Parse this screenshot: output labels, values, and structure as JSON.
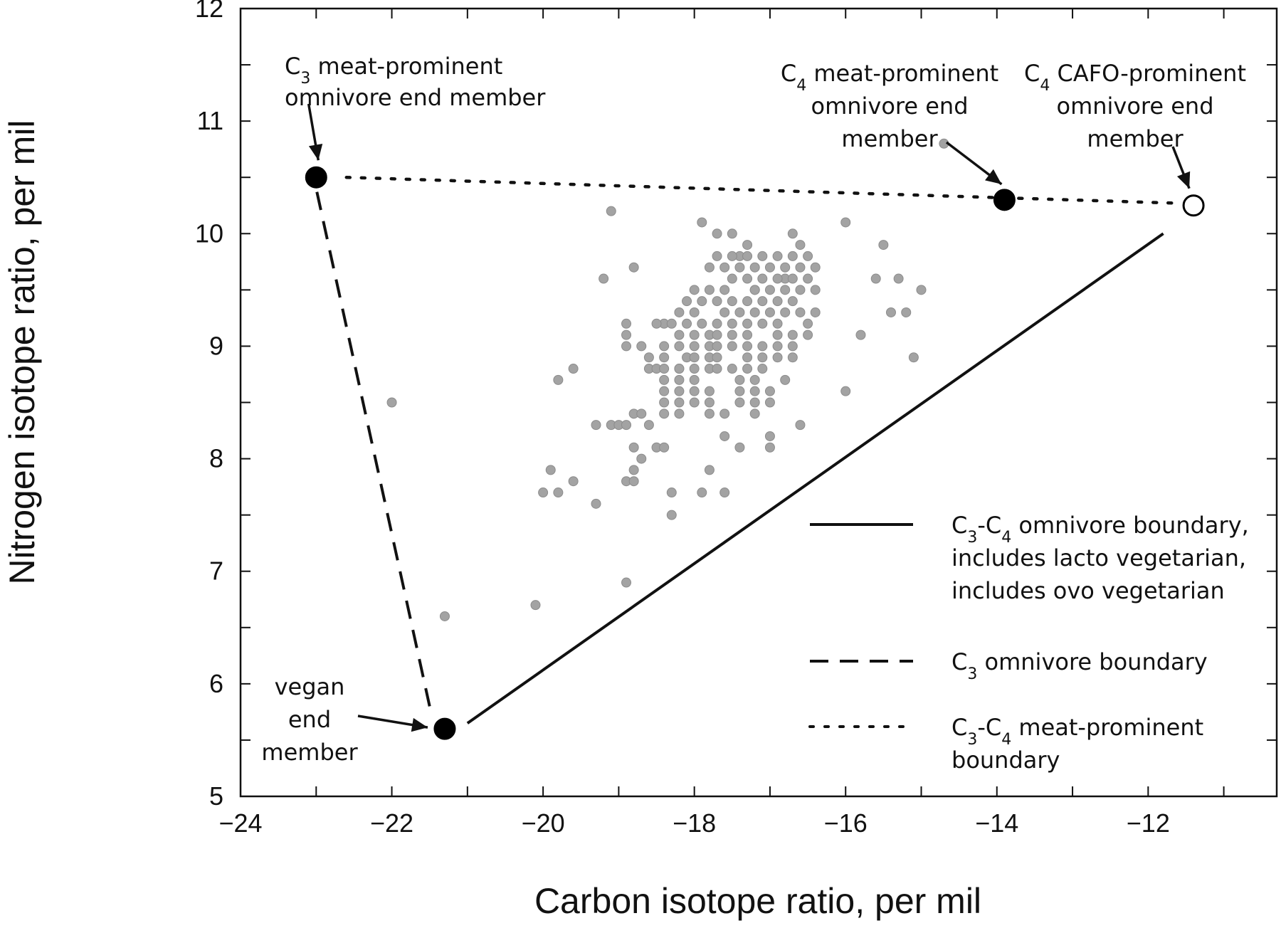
{
  "chart_data": {
    "type": "scatter",
    "xlabel": "Carbon isotope ratio, per mil",
    "ylabel": "Nitrogen isotope ratio, per mil",
    "xlim": [
      -24.0,
      -10.3
    ],
    "ylim": [
      5,
      12
    ],
    "x_ticks": [
      -24,
      -22,
      -20,
      -18,
      -16,
      -14,
      -12
    ],
    "y_ticks": [
      5,
      6,
      7,
      8,
      9,
      10,
      11,
      12
    ],
    "grid": false,
    "legend_position": "bottom-right",
    "legend": [
      {
        "style": "solid",
        "lines": [
          "C3-C4 omnivore boundary,",
          "includes lacto vegetarian,",
          "includes ovo vegetarian"
        ]
      },
      {
        "style": "dashed",
        "lines": [
          "C3 omnivore boundary"
        ]
      },
      {
        "style": "dotted",
        "lines": [
          "C3-C4 meat-prominent",
          "boundary"
        ]
      }
    ],
    "end_members": [
      {
        "x": -23.0,
        "y": 10.5,
        "fill": "black",
        "label": [
          "C3 meat-prominent",
          "omnivore end member"
        ]
      },
      {
        "x": -13.9,
        "y": 10.3,
        "fill": "black",
        "label": [
          "C4 meat-prominent",
          "omnivore end",
          "member"
        ]
      },
      {
        "x": -11.4,
        "y": 10.25,
        "fill": "white",
        "label": [
          "C4 CAFO-prominent",
          "omnivore end",
          "member"
        ]
      },
      {
        "x": -21.3,
        "y": 5.6,
        "fill": "black",
        "label": [
          "vegan",
          "end",
          "member"
        ]
      }
    ],
    "boundaries": [
      {
        "style": "dashed",
        "from": [
          -21.5,
          5.8
        ],
        "to": [
          -23.0,
          10.4
        ]
      },
      {
        "style": "solid",
        "from": [
          -21.0,
          5.65
        ],
        "to": [
          -11.8,
          10.0
        ]
      },
      {
        "style": "dotted",
        "from": [
          -22.6,
          10.5
        ],
        "to": [
          -11.6,
          10.27
        ]
      }
    ],
    "series": [
      {
        "points": [
          [
            -22.0,
            8.5
          ],
          [
            -21.3,
            6.6
          ],
          [
            -20.1,
            6.7
          ],
          [
            -19.8,
            8.7
          ],
          [
            -19.6,
            8.8
          ],
          [
            -19.9,
            7.9
          ],
          [
            -20.0,
            7.7
          ],
          [
            -19.8,
            7.7
          ],
          [
            -19.6,
            7.8
          ],
          [
            -19.3,
            7.6
          ],
          [
            -19.3,
            8.3
          ],
          [
            -19.1,
            8.3
          ],
          [
            -19.0,
            8.3
          ],
          [
            -18.9,
            8.3
          ],
          [
            -18.9,
            7.8
          ],
          [
            -18.8,
            7.8
          ],
          [
            -18.9,
            6.9
          ],
          [
            -19.1,
            10.2
          ],
          [
            -19.2,
            9.6
          ],
          [
            -18.8,
            9.7
          ],
          [
            -18.9,
            9.2
          ],
          [
            -18.9,
            9.1
          ],
          [
            -18.9,
            9.0
          ],
          [
            -18.7,
            9.0
          ],
          [
            -18.6,
            8.9
          ],
          [
            -18.6,
            8.8
          ],
          [
            -18.5,
            8.8
          ],
          [
            -18.8,
            8.4
          ],
          [
            -18.7,
            8.4
          ],
          [
            -18.6,
            8.3
          ],
          [
            -18.8,
            8.1
          ],
          [
            -18.7,
            8.0
          ],
          [
            -18.8,
            7.9
          ],
          [
            -18.5,
            8.1
          ],
          [
            -18.4,
            8.1
          ],
          [
            -18.3,
            7.7
          ],
          [
            -18.3,
            7.5
          ],
          [
            -17.6,
            7.7
          ],
          [
            -17.8,
            7.9
          ],
          [
            -17.9,
            10.1
          ],
          [
            -17.7,
            10.0
          ],
          [
            -17.5,
            10.0
          ],
          [
            -16.7,
            10.0
          ],
          [
            -16.0,
            10.1
          ],
          [
            -16.6,
            9.9
          ],
          [
            -15.5,
            9.9
          ],
          [
            -17.3,
            9.9
          ],
          [
            -17.4,
            9.8
          ],
          [
            -15.6,
            9.6
          ],
          [
            -15.3,
            9.6
          ],
          [
            -15.0,
            9.5
          ],
          [
            -15.4,
            9.3
          ],
          [
            -15.2,
            9.3
          ],
          [
            -15.8,
            9.1
          ],
          [
            -15.1,
            8.9
          ],
          [
            -16.0,
            8.6
          ],
          [
            -16.6,
            8.3
          ],
          [
            -17.0,
            8.1
          ],
          [
            -17.0,
            8.2
          ],
          [
            -17.6,
            8.2
          ],
          [
            -17.4,
            8.1
          ],
          [
            -17.9,
            7.7
          ],
          [
            -18.2,
            8.8
          ],
          [
            -18.1,
            8.9
          ],
          [
            -17.6,
            9.3
          ],
          [
            -18.4,
            9.2
          ],
          [
            -18.5,
            9.2
          ],
          [
            -17.2,
            9.5
          ],
          [
            -16.8,
            9.6
          ],
          [
            -14.7,
            10.8
          ]
        ]
      }
    ]
  }
}
